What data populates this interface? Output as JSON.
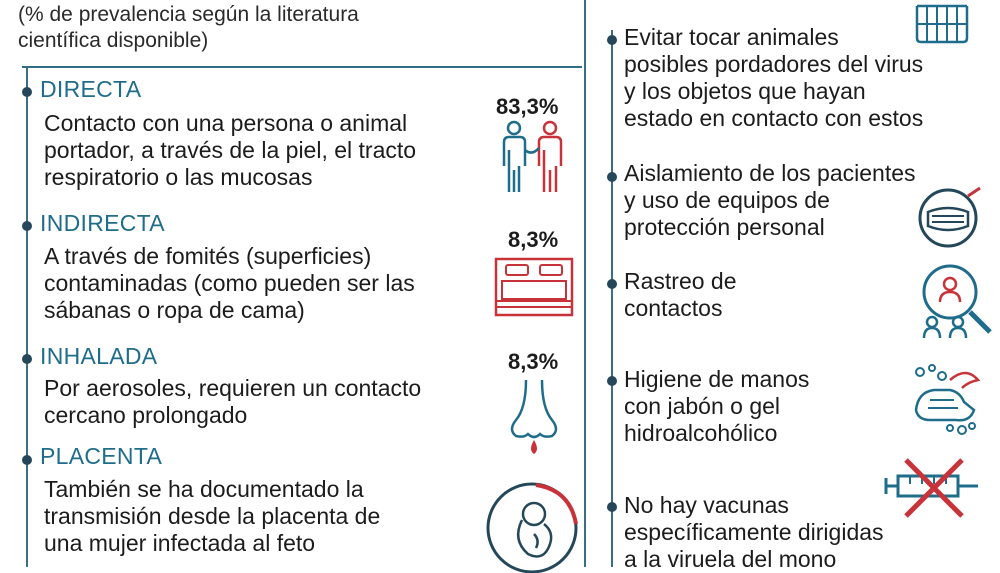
{
  "note": {
    "line1": "(% de prevalencia según la literatura",
    "line2": "científica disponible)"
  },
  "transmission": [
    {
      "category": "DIRECTA",
      "lines": [
        "Contacto con una persona o animal",
        "portador, a través de la piel, el tracto",
        "respiratorio o las mucosas"
      ],
      "percent": "83,3%",
      "icon": "people-contact-icon"
    },
    {
      "category": "INDIRECTA",
      "lines": [
        "A través de fomités (superficies)",
        "contaminadas (como pueden ser las",
        "sábanas o ropa de cama)"
      ],
      "percent": "8,3%",
      "icon": "bed-icon"
    },
    {
      "category": "INHALADA",
      "lines": [
        "Por aerosoles, requieren un contacto",
        "cercano prolongado"
      ],
      "percent": "8,3%",
      "icon": "nose-drop-icon"
    },
    {
      "category": "PLACENTA",
      "lines": [
        "También se ha documentado la",
        "transmisión desde la placenta de",
        "una mujer infectada al feto"
      ],
      "icon": "fetus-icon"
    }
  ],
  "prevention": [
    {
      "lines": [
        "Evitar tocar animales",
        "posibles pordadores del virus",
        "y los objetos que hayan",
        "estado en contacto con estos"
      ],
      "icon": "animal-cage-icon"
    },
    {
      "lines": [
        "Aislamiento de los pacientes",
        "y uso de equipos de",
        "protección personal"
      ],
      "icon": "face-mask-icon"
    },
    {
      "lines": [
        "Rastreo de",
        "contactos"
      ],
      "icon": "contact-tracing-icon"
    },
    {
      "lines": [
        "Higiene de manos",
        "con jabón o gel",
        "hidroalcohólico"
      ],
      "icon": "hand-washing-icon"
    },
    {
      "lines": [
        "No hay vacunas",
        "específicamente dirigidas",
        "a la viruela del mono"
      ],
      "icon": "no-vaccine-icon"
    }
  ],
  "colors": {
    "accent": "#1f6d8a",
    "red": "#c8333a",
    "dark": "#24475a"
  }
}
